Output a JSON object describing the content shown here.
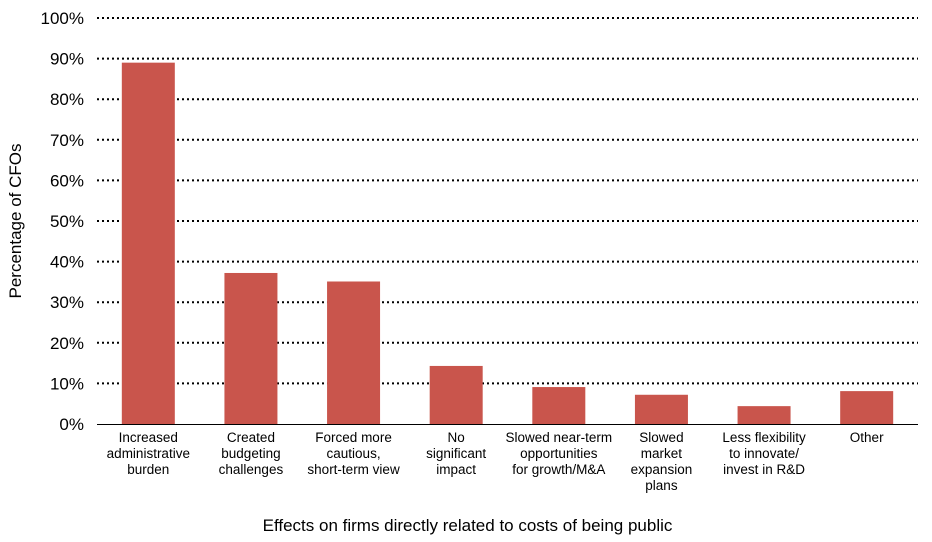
{
  "chart_data": {
    "type": "bar",
    "title": "",
    "xlabel": "Effects on firms directly related to costs of being public",
    "ylabel": "Percentage of CFOs",
    "ylim": [
      0,
      100
    ],
    "ytick_values": [
      0,
      10,
      20,
      30,
      40,
      50,
      60,
      70,
      80,
      90,
      100
    ],
    "ytick_labels": [
      "0%",
      "10%",
      "20%",
      "30%",
      "40%",
      "50%",
      "60%",
      "70%",
      "80%",
      "90%",
      "100%"
    ],
    "categories": [
      [
        "Increased",
        "administrative",
        "burden"
      ],
      [
        "Created",
        "budgeting",
        "challenges"
      ],
      [
        "Forced more",
        "cautious,",
        "short-term view"
      ],
      [
        "No",
        "significant",
        "impact"
      ],
      [
        "Slowed near-term",
        "opportunities",
        "for growth/M&A"
      ],
      [
        "Slowed",
        "market",
        "expansion",
        "plans"
      ],
      [
        "Less flexibility",
        "to innovate/",
        "invest in R&D"
      ],
      [
        "Other"
      ]
    ],
    "values": [
      89,
      37.2,
      35.1,
      14.3,
      9.1,
      7.2,
      4.4,
      8.1
    ],
    "bar_color": "#c9554c",
    "grid": true,
    "grid_style": "dotted",
    "legend": "none"
  }
}
